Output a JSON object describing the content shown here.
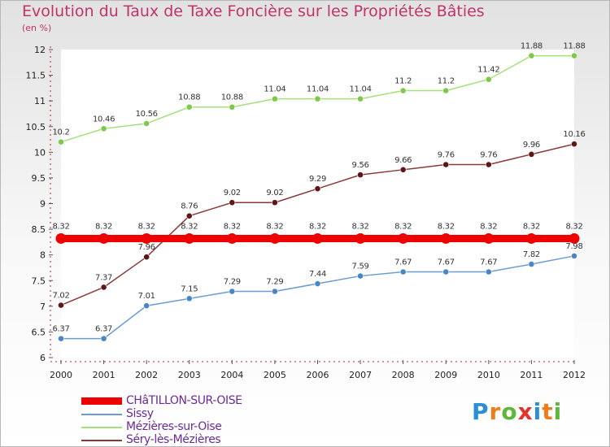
{
  "title": "Evolution du Taux de Taxe Foncière sur les Propriétés Bâties",
  "subtitle": "(en %)",
  "chart_data": {
    "type": "line",
    "title": "Evolution du Taux de Taxe Foncière sur les Propriétés Bâties",
    "ylabel": "(en %)",
    "xlabel": "",
    "categories": [
      "2000",
      "2001",
      "2002",
      "2003",
      "2004",
      "2005",
      "2006",
      "2007",
      "2008",
      "2009",
      "2010",
      "2011",
      "2012"
    ],
    "ylim": [
      6,
      12
    ],
    "yticks": [
      "6",
      "6.5",
      "7",
      "7.5",
      "8",
      "8.5",
      "9",
      "9.5",
      "10",
      "10.5",
      "11",
      "11.5",
      "12"
    ],
    "series": [
      {
        "name": "CHâTILLON-SUR-OISE",
        "color": "#ee0000",
        "marker": "#ee0000",
        "labels_show": true,
        "values": [
          8.32,
          8.32,
          8.32,
          8.32,
          8.32,
          8.32,
          8.32,
          8.32,
          8.32,
          8.32,
          8.32,
          8.32,
          8.32
        ],
        "labels": [
          "8.32",
          "8.32",
          "8.32",
          "8.32",
          "8.32",
          "8.32",
          "8.32",
          "8.32",
          "8.32",
          "8.32",
          "8.32",
          "8.32",
          "8.32"
        ]
      },
      {
        "name": "Sissy",
        "color": "#6b9bd1",
        "marker": "#4a86c5",
        "labels_show": true,
        "values": [
          6.37,
          6.37,
          7.01,
          7.15,
          7.29,
          7.29,
          7.44,
          7.59,
          7.67,
          7.67,
          7.67,
          7.82,
          7.98
        ],
        "labels": [
          "6.37",
          "6.37",
          "7.01",
          "7.15",
          "7.29",
          "7.29",
          "7.44",
          "7.59",
          "7.67",
          "7.67",
          "7.67",
          "7.82",
          "7.98"
        ]
      },
      {
        "name": "Mézières-sur-Oise",
        "color": "#a6e07a",
        "marker": "#7fc94a",
        "labels_show": true,
        "values": [
          10.2,
          10.46,
          10.56,
          10.88,
          10.88,
          11.04,
          11.04,
          11.04,
          11.2,
          11.2,
          11.42,
          11.88,
          11.88
        ],
        "labels": [
          "10.2",
          "10.46",
          "10.56",
          "10.88",
          "10.88",
          "11.04",
          "11.04",
          "11.04",
          "11.2",
          "11.2",
          "11.42",
          "11.88",
          "11.88"
        ]
      },
      {
        "name": "Séry-lès-Mézières",
        "color": "#8b3a3a",
        "marker": "#5e1616",
        "labels_show": true,
        "values": [
          7.02,
          7.37,
          7.96,
          8.76,
          9.02,
          9.02,
          9.29,
          9.56,
          9.66,
          9.76,
          9.76,
          9.96,
          10.16
        ],
        "labels": [
          "7.02",
          "7.37",
          "7.96",
          "8.76",
          "9.02",
          "9.02",
          "9.29",
          "9.56",
          "9.66",
          "9.76",
          "9.76",
          "9.96",
          "10.16"
        ]
      }
    ],
    "legend": {
      "placement": "bottom-left"
    }
  },
  "legend": {
    "items": [
      {
        "label": "CHâTILLON-SUR-OISE",
        "color": "#ee0000"
      },
      {
        "label": "Sissy",
        "color": "#6b9bd1"
      },
      {
        "label": "Mézières-sur-Oise",
        "color": "#a6e07a"
      },
      {
        "label": "Séry-lès-Mézières",
        "color": "#8b3a3a"
      }
    ]
  },
  "logo": {
    "letters": [
      "P",
      "r",
      "o",
      "x",
      "i",
      "t",
      "i"
    ],
    "colors": [
      "#2a8fd6",
      "#ef7d1a",
      "#5cb83a",
      "#e2342e",
      "#2a8fd6",
      "#ef7d1a",
      "#5cb83a"
    ]
  }
}
